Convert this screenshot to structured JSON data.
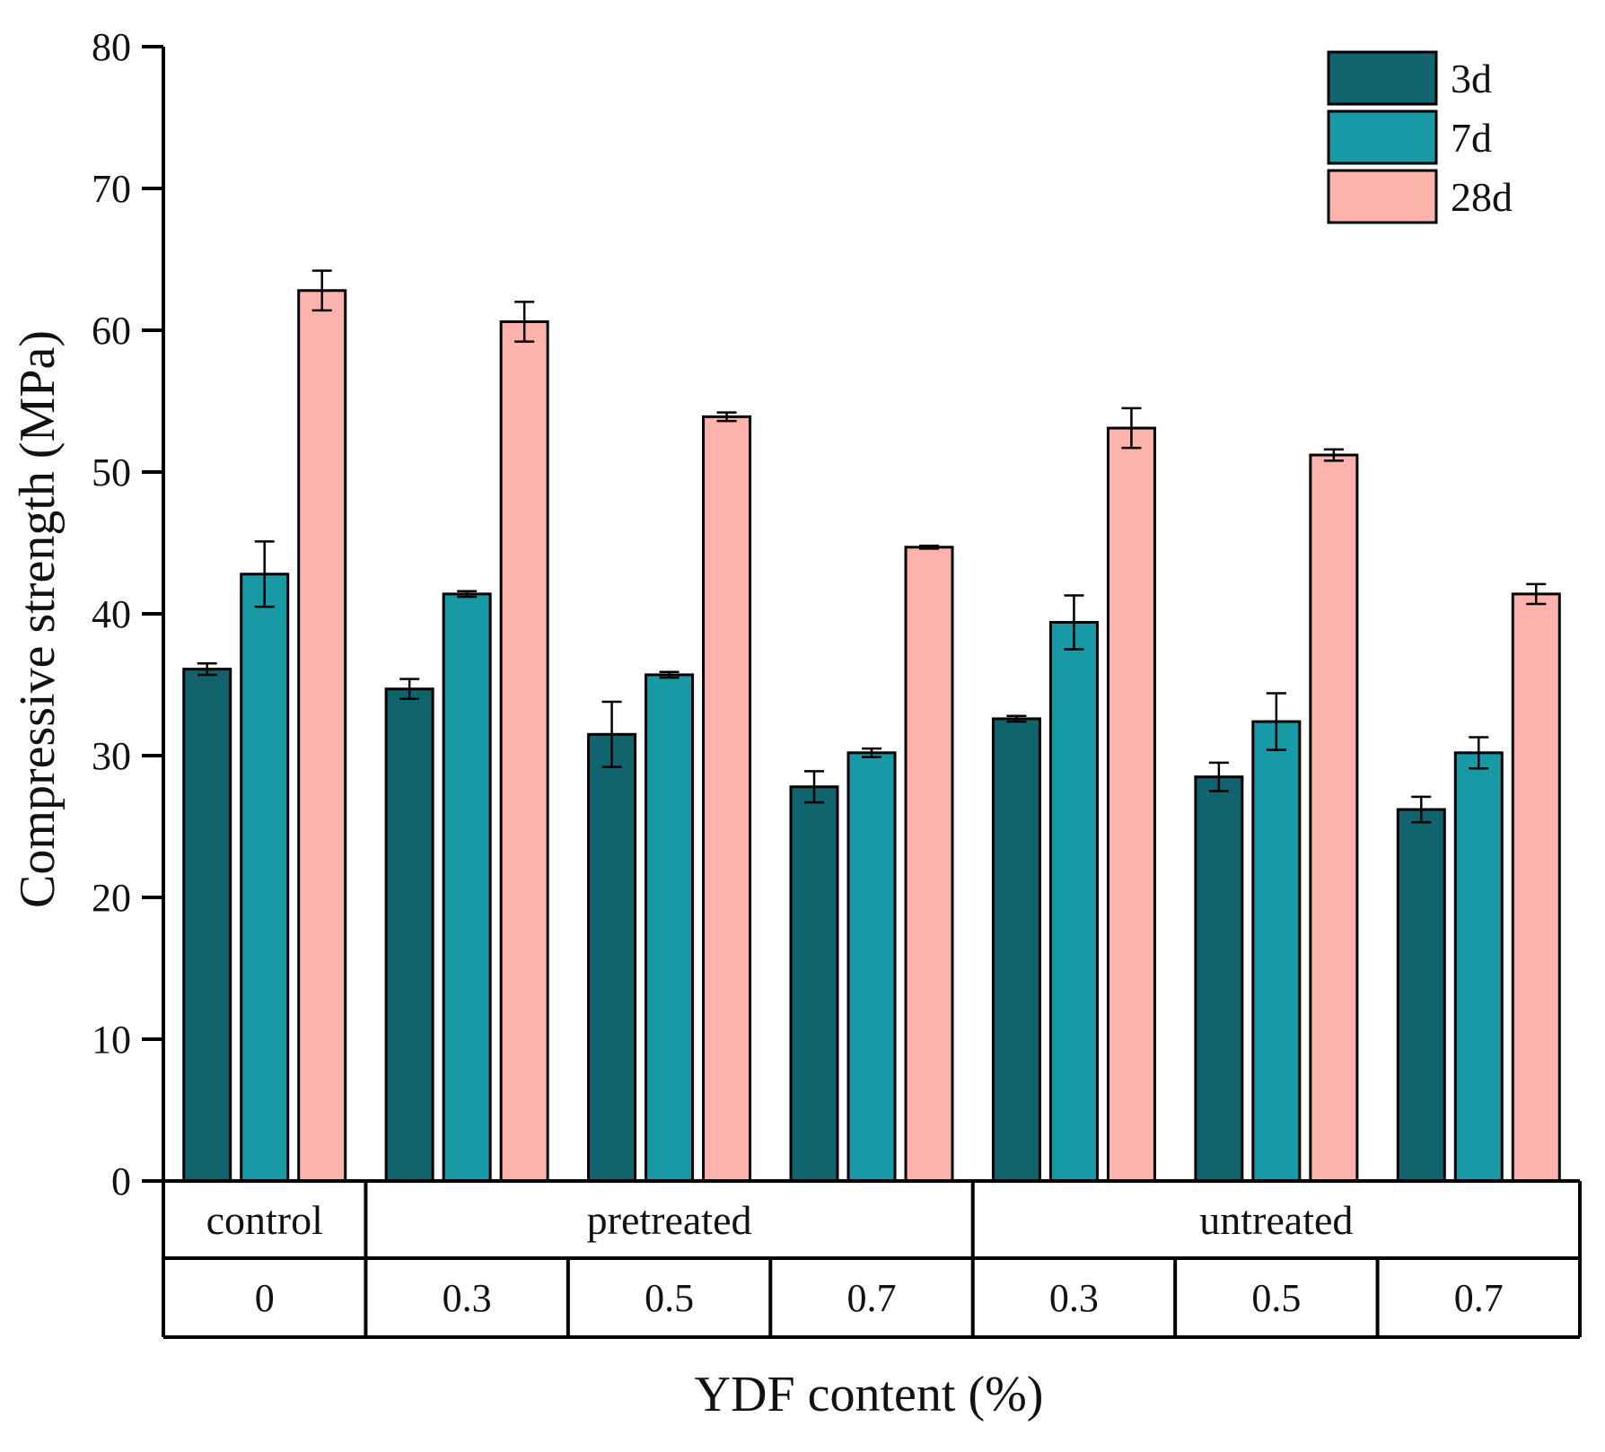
{
  "chart_data": {
    "type": "bar",
    "xlabel": "YDF content (%)",
    "ylabel": "Compressive strength (MPa)",
    "ylim": [
      0,
      80
    ],
    "yticks": [
      "0",
      "10",
      "20",
      "30",
      "40",
      "50",
      "60",
      "70",
      "80"
    ],
    "legend_position": "top-right",
    "grid": false,
    "groups": [
      {
        "label": "control",
        "span": 1
      },
      {
        "label": "pretreated",
        "span": 3
      },
      {
        "label": "untreated",
        "span": 3
      }
    ],
    "categories": [
      "0",
      "0.3",
      "0.5",
      "0.7",
      "0.3",
      "0.5",
      "0.7"
    ],
    "series": [
      {
        "name": "3d",
        "color": "#11636d",
        "values": [
          36.1,
          34.7,
          31.5,
          27.8,
          32.6,
          28.5,
          26.2
        ],
        "errors": [
          0.4,
          0.7,
          2.3,
          1.1,
          0.2,
          1.0,
          0.9
        ]
      },
      {
        "name": "7d",
        "color": "#1899a6",
        "values": [
          42.8,
          41.4,
          35.7,
          30.2,
          39.4,
          32.4,
          30.2
        ],
        "errors": [
          2.3,
          0.2,
          0.2,
          0.3,
          1.9,
          2.0,
          1.1
        ]
      },
      {
        "name": "28d",
        "color": "#fdb2ac",
        "values": [
          62.8,
          60.6,
          53.9,
          44.7,
          53.1,
          51.2,
          41.4
        ],
        "errors": [
          1.4,
          1.4,
          0.3,
          0.1,
          1.4,
          0.4,
          0.7
        ]
      }
    ]
  }
}
